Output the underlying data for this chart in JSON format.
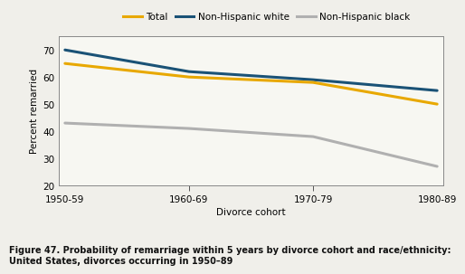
{
  "x_labels": [
    "1950-59",
    "1960-69",
    "1970-79",
    "1980-89"
  ],
  "x_positions": [
    0,
    1,
    2,
    3
  ],
  "total": [
    65,
    60,
    58,
    50
  ],
  "non_hispanic_white": [
    70,
    62,
    59,
    55
  ],
  "non_hispanic_black": [
    43,
    41,
    38,
    27
  ],
  "total_color": "#E8A800",
  "white_color": "#1A5276",
  "black_color": "#B0B0B0",
  "ylabel": "Percent remarried",
  "xlabel": "Divorce cohort",
  "ylim": [
    20,
    75
  ],
  "yticks": [
    20,
    30,
    40,
    50,
    60,
    70
  ],
  "legend_labels": [
    "Total",
    "Non-Hispanic white",
    "Non-Hispanic black"
  ],
  "caption_line1": "Figure 47. Probability of remarriage within 5 years by divorce cohort and race/ethnicity:",
  "caption_line2": "United States, divorces occurring in 1950–89",
  "bg_color": "#F0EFEA",
  "plot_bg_color": "#F7F7F2",
  "box_color": "#CCCCCC",
  "linewidth": 2.2
}
